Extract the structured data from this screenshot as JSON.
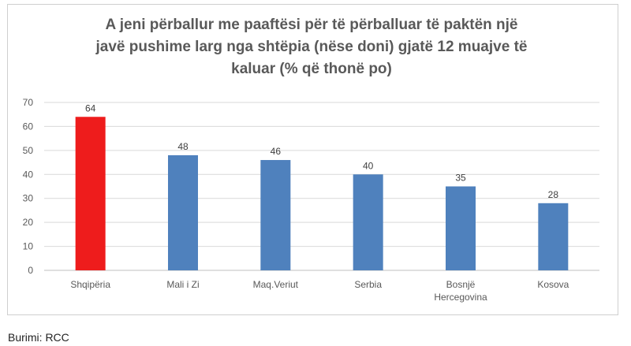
{
  "chart_data": {
    "type": "bar",
    "title": "A jeni përballur me paaftësi për të përballuar të paktën një\njavë pushime larg nga shtëpia (nëse doni) gjatë 12 muajve të\nkaluar (% që thonë po)",
    "categories": [
      "Shqipëria",
      "Mali i Zi",
      "Maq.Veriut",
      "Serbia",
      "Bosnjë\nHercegovina",
      "Kosova"
    ],
    "values": [
      64,
      48,
      46,
      40,
      35,
      28
    ],
    "data_labels": [
      "64",
      "48",
      "46",
      "40",
      "35",
      "28"
    ],
    "bar_colors": [
      "#ee1c1c",
      "#4f81bd",
      "#4f81bd",
      "#4f81bd",
      "#4f81bd",
      "#4f81bd"
    ],
    "ylim": [
      0,
      70
    ],
    "yticks": [
      0,
      10,
      20,
      30,
      40,
      50,
      60,
      70
    ],
    "grid": true,
    "legend": false,
    "xlabel": "",
    "ylabel": ""
  },
  "source_text": "Burimi: RCC"
}
